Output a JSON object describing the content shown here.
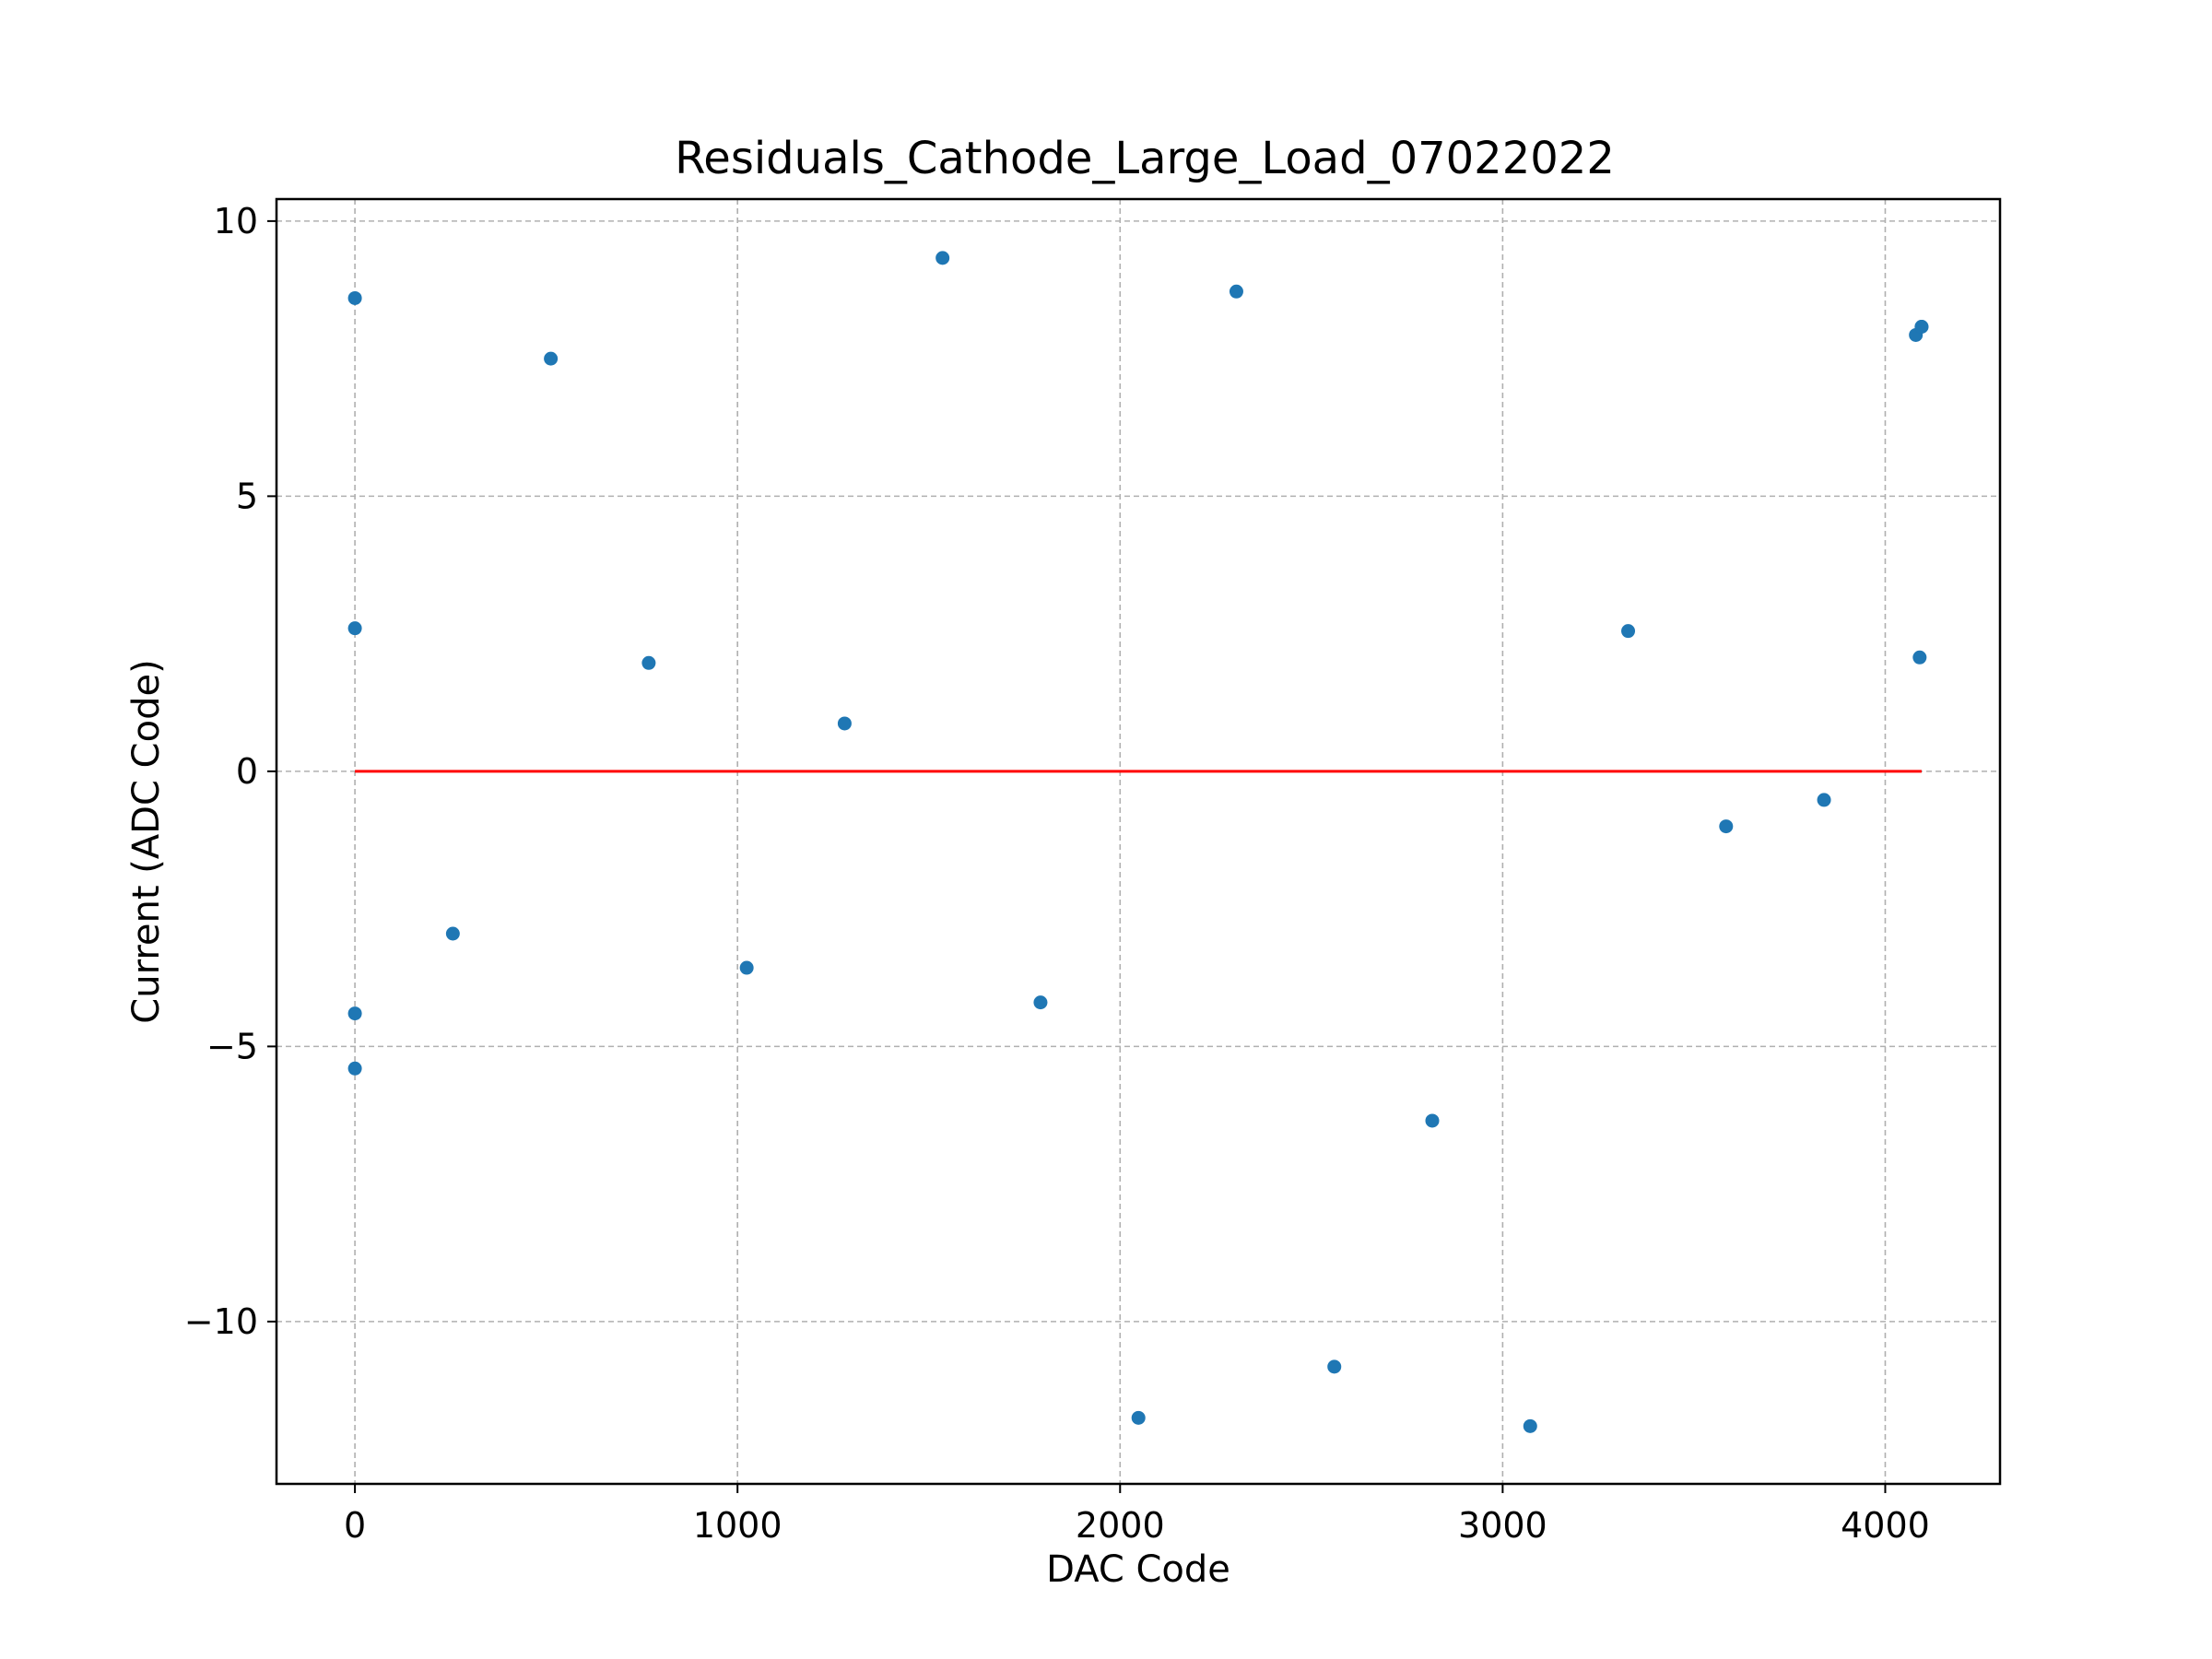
{
  "chart_data": {
    "type": "scatter",
    "title": "Residuals_Cathode_Large_Load_07022022",
    "xlabel": "DAC Code",
    "ylabel": "Current (ADC Code)",
    "xlim": [
      -205,
      4300
    ],
    "ylim": [
      -12.95,
      10.4
    ],
    "x_ticks": [
      0,
      1000,
      2000,
      3000,
      4000
    ],
    "x_tick_labels": [
      "0",
      "1000",
      "2000",
      "3000",
      "4000"
    ],
    "y_ticks": [
      10,
      5,
      0,
      -5,
      -10
    ],
    "y_tick_labels": [
      "10",
      "5",
      "0",
      "−5",
      "−10"
    ],
    "grid": true,
    "series": [
      {
        "kind": "points",
        "color": "#1f77b4",
        "x": [
          0,
          0,
          0,
          0,
          256,
          512,
          768,
          1024,
          1280,
          1536,
          1792,
          2048,
          2304,
          2560,
          2816,
          3072,
          3328,
          3584,
          3840,
          4080,
          4090,
          4095,
          4095
        ],
        "y": [
          8.6,
          2.6,
          -4.4,
          -5.4,
          -2.95,
          7.5,
          1.97,
          -3.57,
          0.87,
          9.33,
          -4.2,
          -11.75,
          8.72,
          -10.82,
          -6.35,
          -11.9,
          2.55,
          -1.0,
          -0.52,
          7.93,
          2.07,
          8.08,
          8.08
        ]
      },
      {
        "kind": "line",
        "color": "#ff0000",
        "x": [
          0,
          4095
        ],
        "y": [
          0,
          0
        ]
      }
    ]
  }
}
